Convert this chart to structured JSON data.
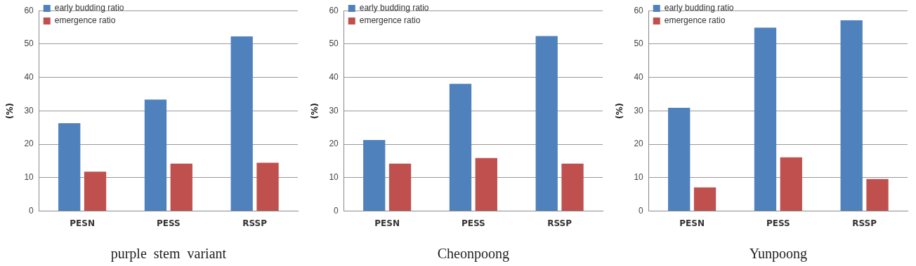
{
  "chart_data": [
    {
      "type": "bar",
      "categories": [
        "PESN",
        "PESS",
        "RSSP"
      ],
      "xlabel": "purple  stem  variant",
      "ylabel": "(%)",
      "ylim": [
        0,
        60
      ],
      "yticks": [
        0,
        10,
        20,
        30,
        40,
        50,
        60
      ],
      "grid": "y",
      "legend": "top left",
      "series": [
        {
          "name": "early budding ratio",
          "color": "#4f81bd",
          "values": [
            26.3,
            33.4,
            52.3
          ]
        },
        {
          "name": "emergence ratio",
          "color": "#c0504d",
          "values": [
            11.8,
            14.2,
            14.5
          ]
        }
      ]
    },
    {
      "type": "bar",
      "categories": [
        "PESN",
        "PESS",
        "RSSP"
      ],
      "xlabel": "Cheonpoong",
      "ylabel": "(%)",
      "ylim": [
        0,
        60
      ],
      "yticks": [
        0,
        10,
        20,
        30,
        40,
        50,
        60
      ],
      "grid": "y",
      "legend": "top left",
      "series": [
        {
          "name": "early budding ratio",
          "color": "#4f81bd",
          "values": [
            21.3,
            38.1,
            52.4
          ]
        },
        {
          "name": "emergence ratio",
          "color": "#c0504d",
          "values": [
            14.2,
            15.9,
            14.2
          ]
        }
      ]
    },
    {
      "type": "bar",
      "categories": [
        "PESN",
        "PESS",
        "RSSP"
      ],
      "xlabel": "Yunpoong",
      "ylabel": "(%)",
      "ylim": [
        0,
        60
      ],
      "yticks": [
        0,
        10,
        20,
        30,
        40,
        50,
        60
      ],
      "grid": "y",
      "legend": "top left",
      "series": [
        {
          "name": "early budding ratio",
          "color": "#4f81bd",
          "values": [
            30.9,
            54.9,
            57.1
          ]
        },
        {
          "name": "emergence ratio",
          "color": "#c0504d",
          "values": [
            7.1,
            16.1,
            9.6
          ]
        }
      ]
    }
  ]
}
